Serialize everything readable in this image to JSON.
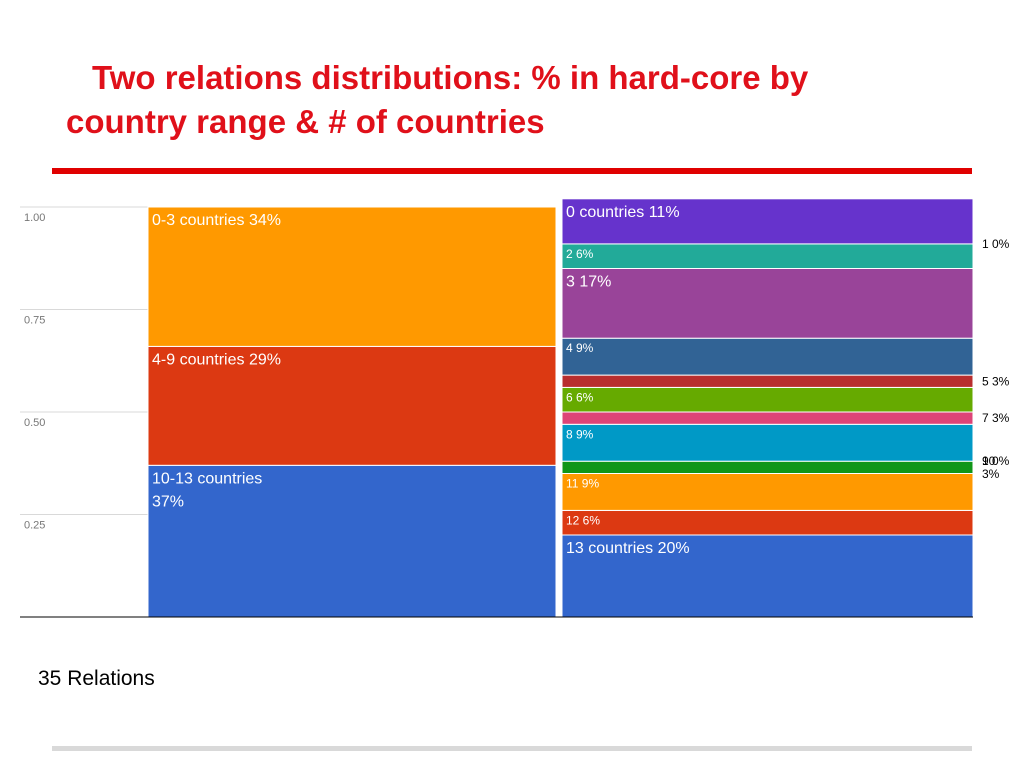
{
  "title": {
    "line1": "Two relations distributions: % in hard-core by",
    "line2": "country range & # of countries"
  },
  "footnote": "35 Relations",
  "colors": {
    "title_red": "#e0101a",
    "rule_red": "#e00000",
    "grid": "#d9d9d9",
    "axis": "#000000"
  },
  "chart_data": {
    "type": "mosaic",
    "ylim": [
      0,
      1
    ],
    "y_ticks": [
      "0.25",
      "0.50",
      "0.75",
      "1.00"
    ],
    "y_tick_values": [
      0.25,
      0.5,
      0.75,
      1.0
    ],
    "grid": true,
    "columns": [
      {
        "segments": [
          {
            "label": "10-13 countries 37%",
            "label_lines": [
              "10-13 countries",
              "37%"
            ],
            "value": 0.37,
            "color": "#3366cc",
            "text_color": "#ffffff",
            "size": "large"
          },
          {
            "label": "4-9 countries 29%",
            "value": 0.29,
            "color": "#dc3912",
            "text_color": "#ffffff",
            "size": "large"
          },
          {
            "label": "0-3 countries 34%",
            "value": 0.34,
            "color": "#ff9900",
            "text_color": "#ffffff",
            "size": "large"
          }
        ]
      },
      {
        "segments": [
          {
            "label": "13 countries 20%",
            "value": 0.2,
            "color": "#3366cc",
            "text_color": "#ffffff",
            "size": "large",
            "label_pos": "inside"
          },
          {
            "label": "12 6%",
            "value": 0.06,
            "color": "#dc3912",
            "text_color": "#ffffff",
            "size": "small",
            "label_pos": "inside"
          },
          {
            "label": "11 9%",
            "value": 0.09,
            "color": "#ff9900",
            "text_color": "#ffffff",
            "size": "small",
            "label_pos": "inside"
          },
          {
            "label": "10 3%",
            "label_lines": [
              "10",
              "3%"
            ],
            "value": 0.03,
            "color": "#109618",
            "text_color": "#000000",
            "size": "small",
            "label_pos": "outside"
          },
          {
            "label": "9 0%",
            "value": 0.0,
            "color": "#990099",
            "text_color": "#000000",
            "size": "small",
            "label_pos": "outside"
          },
          {
            "label": "8 9%",
            "value": 0.09,
            "color": "#0099c6",
            "text_color": "#ffffff",
            "size": "small",
            "label_pos": "inside"
          },
          {
            "label": "7 3%",
            "value": 0.03,
            "color": "#dd4477",
            "text_color": "#000000",
            "size": "small",
            "label_pos": "outside"
          },
          {
            "label": "6 6%",
            "value": 0.06,
            "color": "#66aa00",
            "text_color": "#ffffff",
            "size": "small",
            "label_pos": "inside"
          },
          {
            "label": "5 3%",
            "value": 0.03,
            "color": "#b82e2e",
            "text_color": "#000000",
            "size": "small",
            "label_pos": "outside"
          },
          {
            "label": "4 9%",
            "value": 0.09,
            "color": "#316395",
            "text_color": "#ffffff",
            "size": "small",
            "label_pos": "inside"
          },
          {
            "label": "3 17%",
            "value": 0.17,
            "color": "#994499",
            "text_color": "#ffffff",
            "size": "large",
            "label_pos": "inside"
          },
          {
            "label": "2 6%",
            "value": 0.06,
            "color": "#22aa99",
            "text_color": "#ffffff",
            "size": "small",
            "label_pos": "inside"
          },
          {
            "label": "1 0%",
            "value": 0.0,
            "color": "#aaaa11",
            "text_color": "#000000",
            "size": "small",
            "label_pos": "outside"
          },
          {
            "label": "0 countries 11%",
            "value": 0.11,
            "color": "#6633cc",
            "text_color": "#ffffff",
            "size": "large",
            "label_pos": "inside"
          }
        ]
      }
    ]
  }
}
